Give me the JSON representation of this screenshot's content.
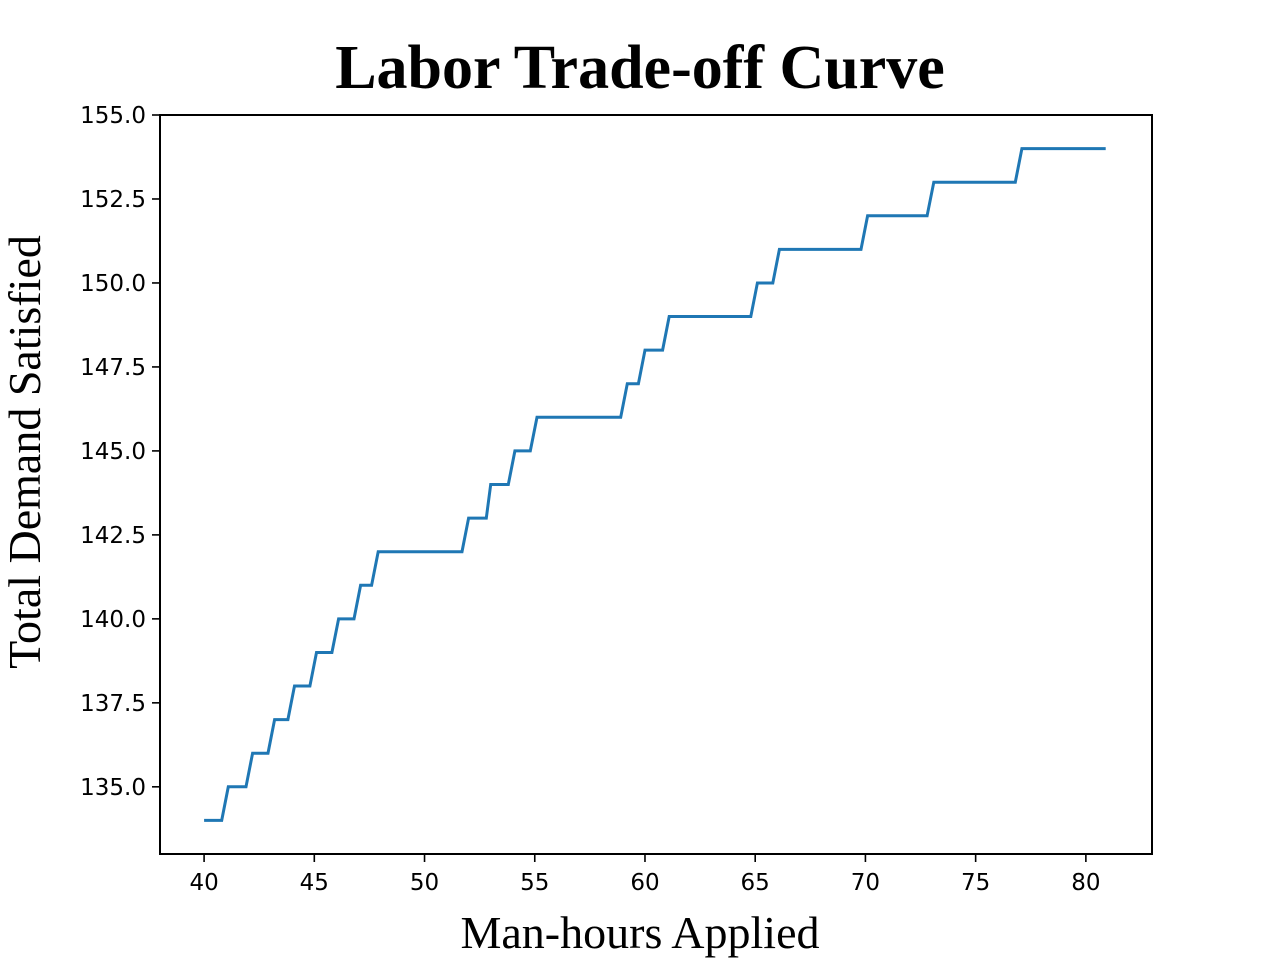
{
  "chart_data": {
    "type": "line",
    "title": "Labor Trade-off Curve",
    "xlabel": "Man-hours Applied",
    "ylabel": "Total Demand Satisfied",
    "xlim": [
      38,
      83
    ],
    "ylim": [
      133,
      155
    ],
    "xticks": [
      40,
      45,
      50,
      55,
      60,
      65,
      70,
      75,
      80
    ],
    "yticks": [
      135.0,
      137.5,
      140.0,
      142.5,
      145.0,
      147.5,
      150.0,
      152.5,
      155.0
    ],
    "xtick_labels": [
      "40",
      "45",
      "50",
      "55",
      "60",
      "65",
      "70",
      "75",
      "80"
    ],
    "ytick_labels": [
      "135.0",
      "137.5",
      "140.0",
      "142.5",
      "145.0",
      "147.5",
      "150.0",
      "152.5",
      "155.0"
    ],
    "grid": false,
    "series": [
      {
        "color": "#1f77b4",
        "x": [
          40.0,
          40.8,
          41.1,
          41.9,
          42.2,
          42.9,
          43.2,
          43.8,
          44.1,
          44.8,
          45.1,
          45.8,
          46.1,
          46.8,
          47.1,
          47.6,
          47.9,
          51.7,
          52.0,
          52.8,
          53.0,
          53.8,
          54.1,
          54.8,
          55.1,
          58.9,
          59.2,
          59.7,
          60.0,
          60.8,
          61.1,
          64.8,
          65.1,
          65.8,
          66.1,
          69.8,
          70.1,
          72.8,
          73.1,
          76.8,
          77.1,
          80.9
        ],
        "y": [
          134,
          134,
          135,
          135,
          136,
          136,
          137,
          137,
          138,
          138,
          139,
          139,
          140,
          140,
          141,
          141,
          142,
          142,
          143,
          143,
          144,
          144,
          145,
          145,
          146,
          146,
          147,
          147,
          148,
          148,
          149,
          149,
          150,
          150,
          151,
          151,
          152,
          152,
          153,
          153,
          154,
          154
        ]
      }
    ]
  }
}
